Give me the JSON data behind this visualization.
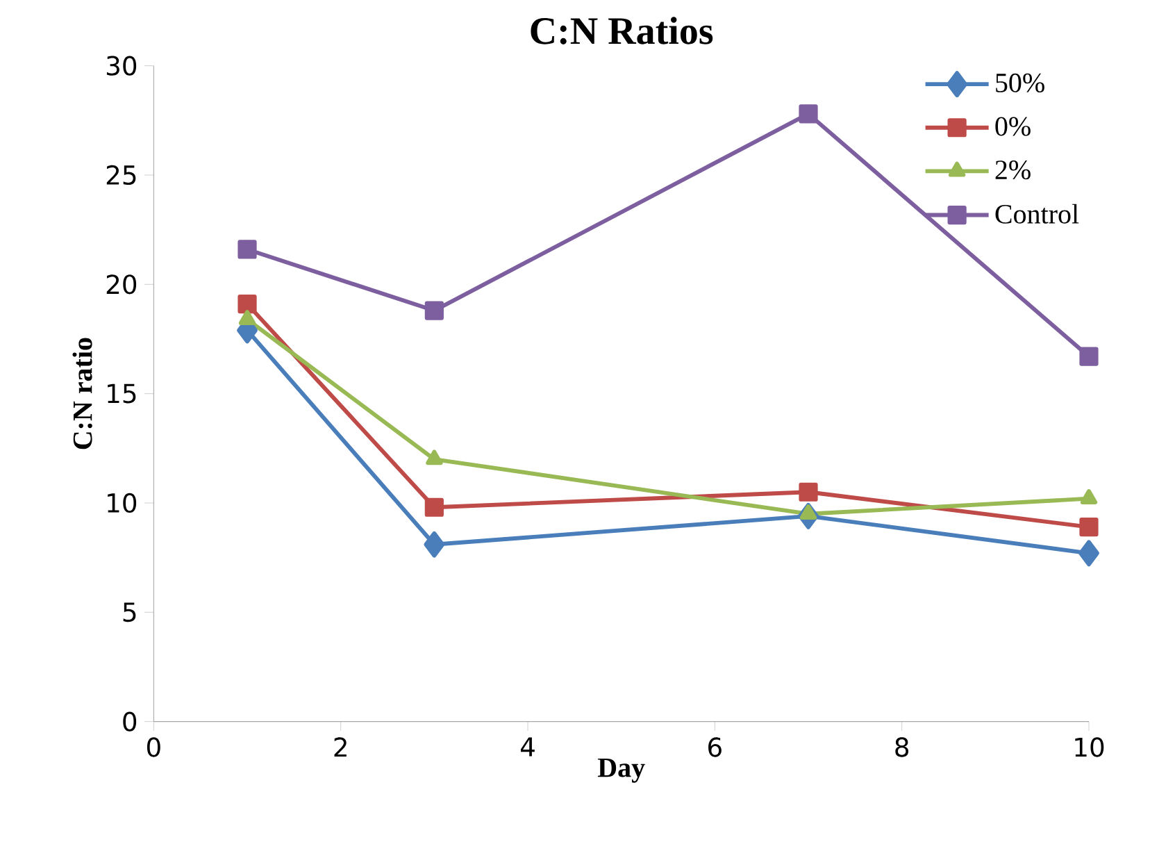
{
  "chart_data": {
    "type": "line",
    "title": "C:N Ratios",
    "xlabel": "Day",
    "ylabel": "C:N ratio",
    "x": [
      1,
      3,
      7,
      10
    ],
    "series": [
      {
        "name": "50%",
        "color": "#4a7ebb",
        "marker": "diamond",
        "values": [
          17.9,
          8.1,
          9.4,
          7.7
        ]
      },
      {
        "name": "0%",
        "color": "#be4b48",
        "marker": "square",
        "values": [
          19.1,
          9.8,
          10.5,
          8.9
        ]
      },
      {
        "name": "2%",
        "color": "#98b954",
        "marker": "triangle",
        "values": [
          18.4,
          12.0,
          9.5,
          10.2
        ]
      },
      {
        "name": "Control",
        "color": "#7d5fa0",
        "marker": "square",
        "values": [
          21.6,
          18.8,
          27.8,
          16.7
        ]
      }
    ],
    "xlim": [
      0,
      10
    ],
    "xticks": [
      0,
      2,
      4,
      6,
      8,
      10
    ],
    "ylim": [
      0,
      30
    ],
    "yticks": [
      0,
      5,
      10,
      15,
      20,
      25,
      30
    ],
    "grid": false,
    "legend": "top right",
    "line_style": "solid"
  }
}
